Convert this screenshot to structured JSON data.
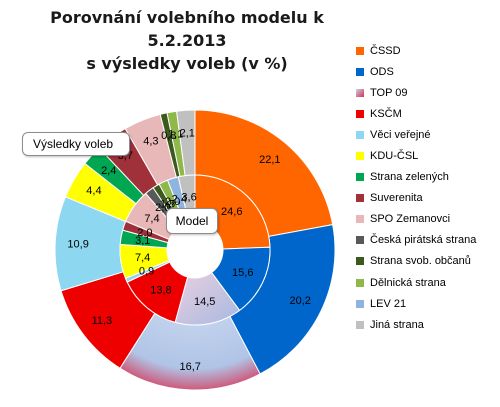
{
  "chart_data": {
    "type": "pie",
    "title_lines": [
      "Porovnání volebního modelu k 5.2.2013",
      "s výsledky voleb (v %)"
    ],
    "categories": [
      "ČSSD",
      "ODS",
      "TOP 09",
      "KSČM",
      "Věci veřejné",
      "KDU-ČSL",
      "Strana zelených",
      "Suverenita",
      "SPO Zemanovci",
      "Česká pirátská  strana",
      "Strana svob. občanů",
      "Dělnická strana",
      "LEV 21",
      "Jiná strana"
    ],
    "colors": [
      "#ff6600",
      "#0066cc",
      "#7a5aa8",
      "#ee0000",
      "#8dd8f0",
      "#ffff00",
      "#00a651",
      "#a0313a",
      "#e8b8b8",
      "#595959",
      "#3d5a1e",
      "#8fb84a",
      "#8fb4e0",
      "#c0c0c0"
    ],
    "series": [
      {
        "name": "Výsledky voleb",
        "values": [
          22.1,
          20.2,
          16.7,
          11.3,
          10.9,
          4.4,
          2.4,
          3.7,
          4.3,
          0.0,
          0.8,
          1.1,
          0.0,
          2.1
        ],
        "labels": [
          "22,1",
          "20,2",
          "16,7",
          "11,3",
          "10,9",
          "4,4",
          "2,4",
          "3,7",
          "4,3",
          "",
          "0,8",
          "1,1",
          "",
          "2,1"
        ]
      },
      {
        "name": "Model",
        "values": [
          24.6,
          15.6,
          14.5,
          13.8,
          0.9,
          7.4,
          3.1,
          2.0,
          7.4,
          2.0,
          1.5,
          2.0,
          2.4,
          3.6
        ],
        "labels": [
          "24,6",
          "15,6",
          "14,5",
          "13,8",
          "0,9",
          "7,4",
          "3,1",
          "2,0",
          "7,4",
          "2,0",
          "1,5",
          "2,0",
          "2,4",
          "3,6"
        ]
      }
    ]
  }
}
